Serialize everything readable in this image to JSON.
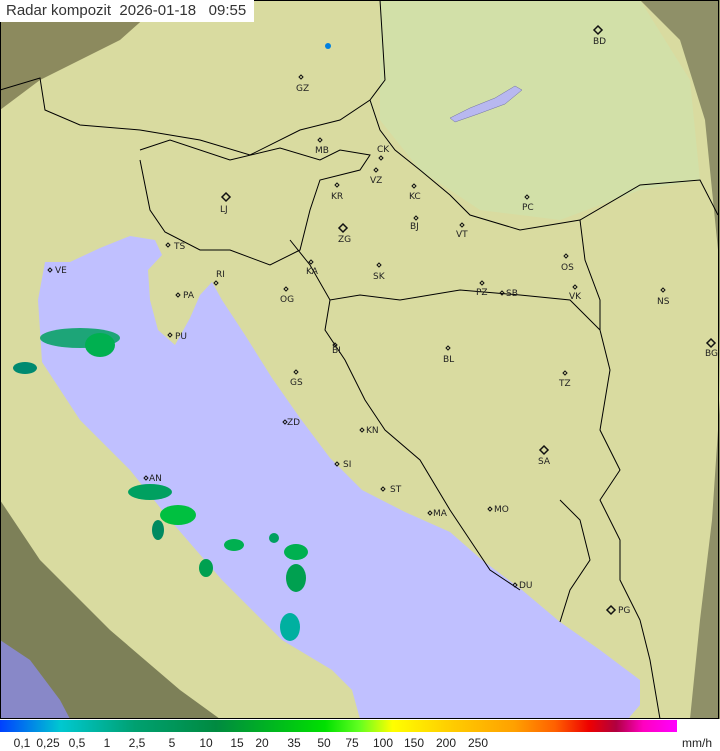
{
  "title": {
    "label": "Radar kompozit",
    "date": "2026-01-18",
    "time": "09:55"
  },
  "colors": {
    "sea": "#c0c0ff",
    "land": "#d9dba0",
    "outside_coverage": "#8c8a5e",
    "border": "#000000"
  },
  "cities": [
    {
      "code": "GZ"
    },
    {
      "code": "BD",
      "capital": true
    },
    {
      "code": "MB"
    },
    {
      "code": "CK"
    },
    {
      "code": "VZ"
    },
    {
      "code": "KR"
    },
    {
      "code": "KC"
    },
    {
      "code": "PC"
    },
    {
      "code": "LJ",
      "capital": true
    },
    {
      "code": "TS"
    },
    {
      "code": "ZG",
      "capital": true
    },
    {
      "code": "BJ"
    },
    {
      "code": "VT"
    },
    {
      "code": "OS"
    },
    {
      "code": "VE"
    },
    {
      "code": "RI"
    },
    {
      "code": "KA"
    },
    {
      "code": "SK"
    },
    {
      "code": "PA"
    },
    {
      "code": "OG"
    },
    {
      "code": "PZ"
    },
    {
      "code": "SB"
    },
    {
      "code": "VK"
    },
    {
      "code": "NS"
    },
    {
      "code": "PU"
    },
    {
      "code": "BI"
    },
    {
      "code": "BL"
    },
    {
      "code": "BG",
      "capital": true
    },
    {
      "code": "GS"
    },
    {
      "code": "TZ"
    },
    {
      "code": "ZD"
    },
    {
      "code": "KN"
    },
    {
      "code": "SA",
      "capital": true
    },
    {
      "code": "SI"
    },
    {
      "code": "AN"
    },
    {
      "code": "ST"
    },
    {
      "code": "MA"
    },
    {
      "code": "MO"
    },
    {
      "code": "DU"
    },
    {
      "code": "PG",
      "capital": true
    }
  ],
  "legend": {
    "labels": [
      "0,1",
      "0,25",
      "0,5",
      "1",
      "2,5",
      "5",
      "10",
      "15",
      "20",
      "35",
      "50",
      "75",
      "100",
      "150",
      "200",
      "250"
    ],
    "unit": "mm/h"
  }
}
